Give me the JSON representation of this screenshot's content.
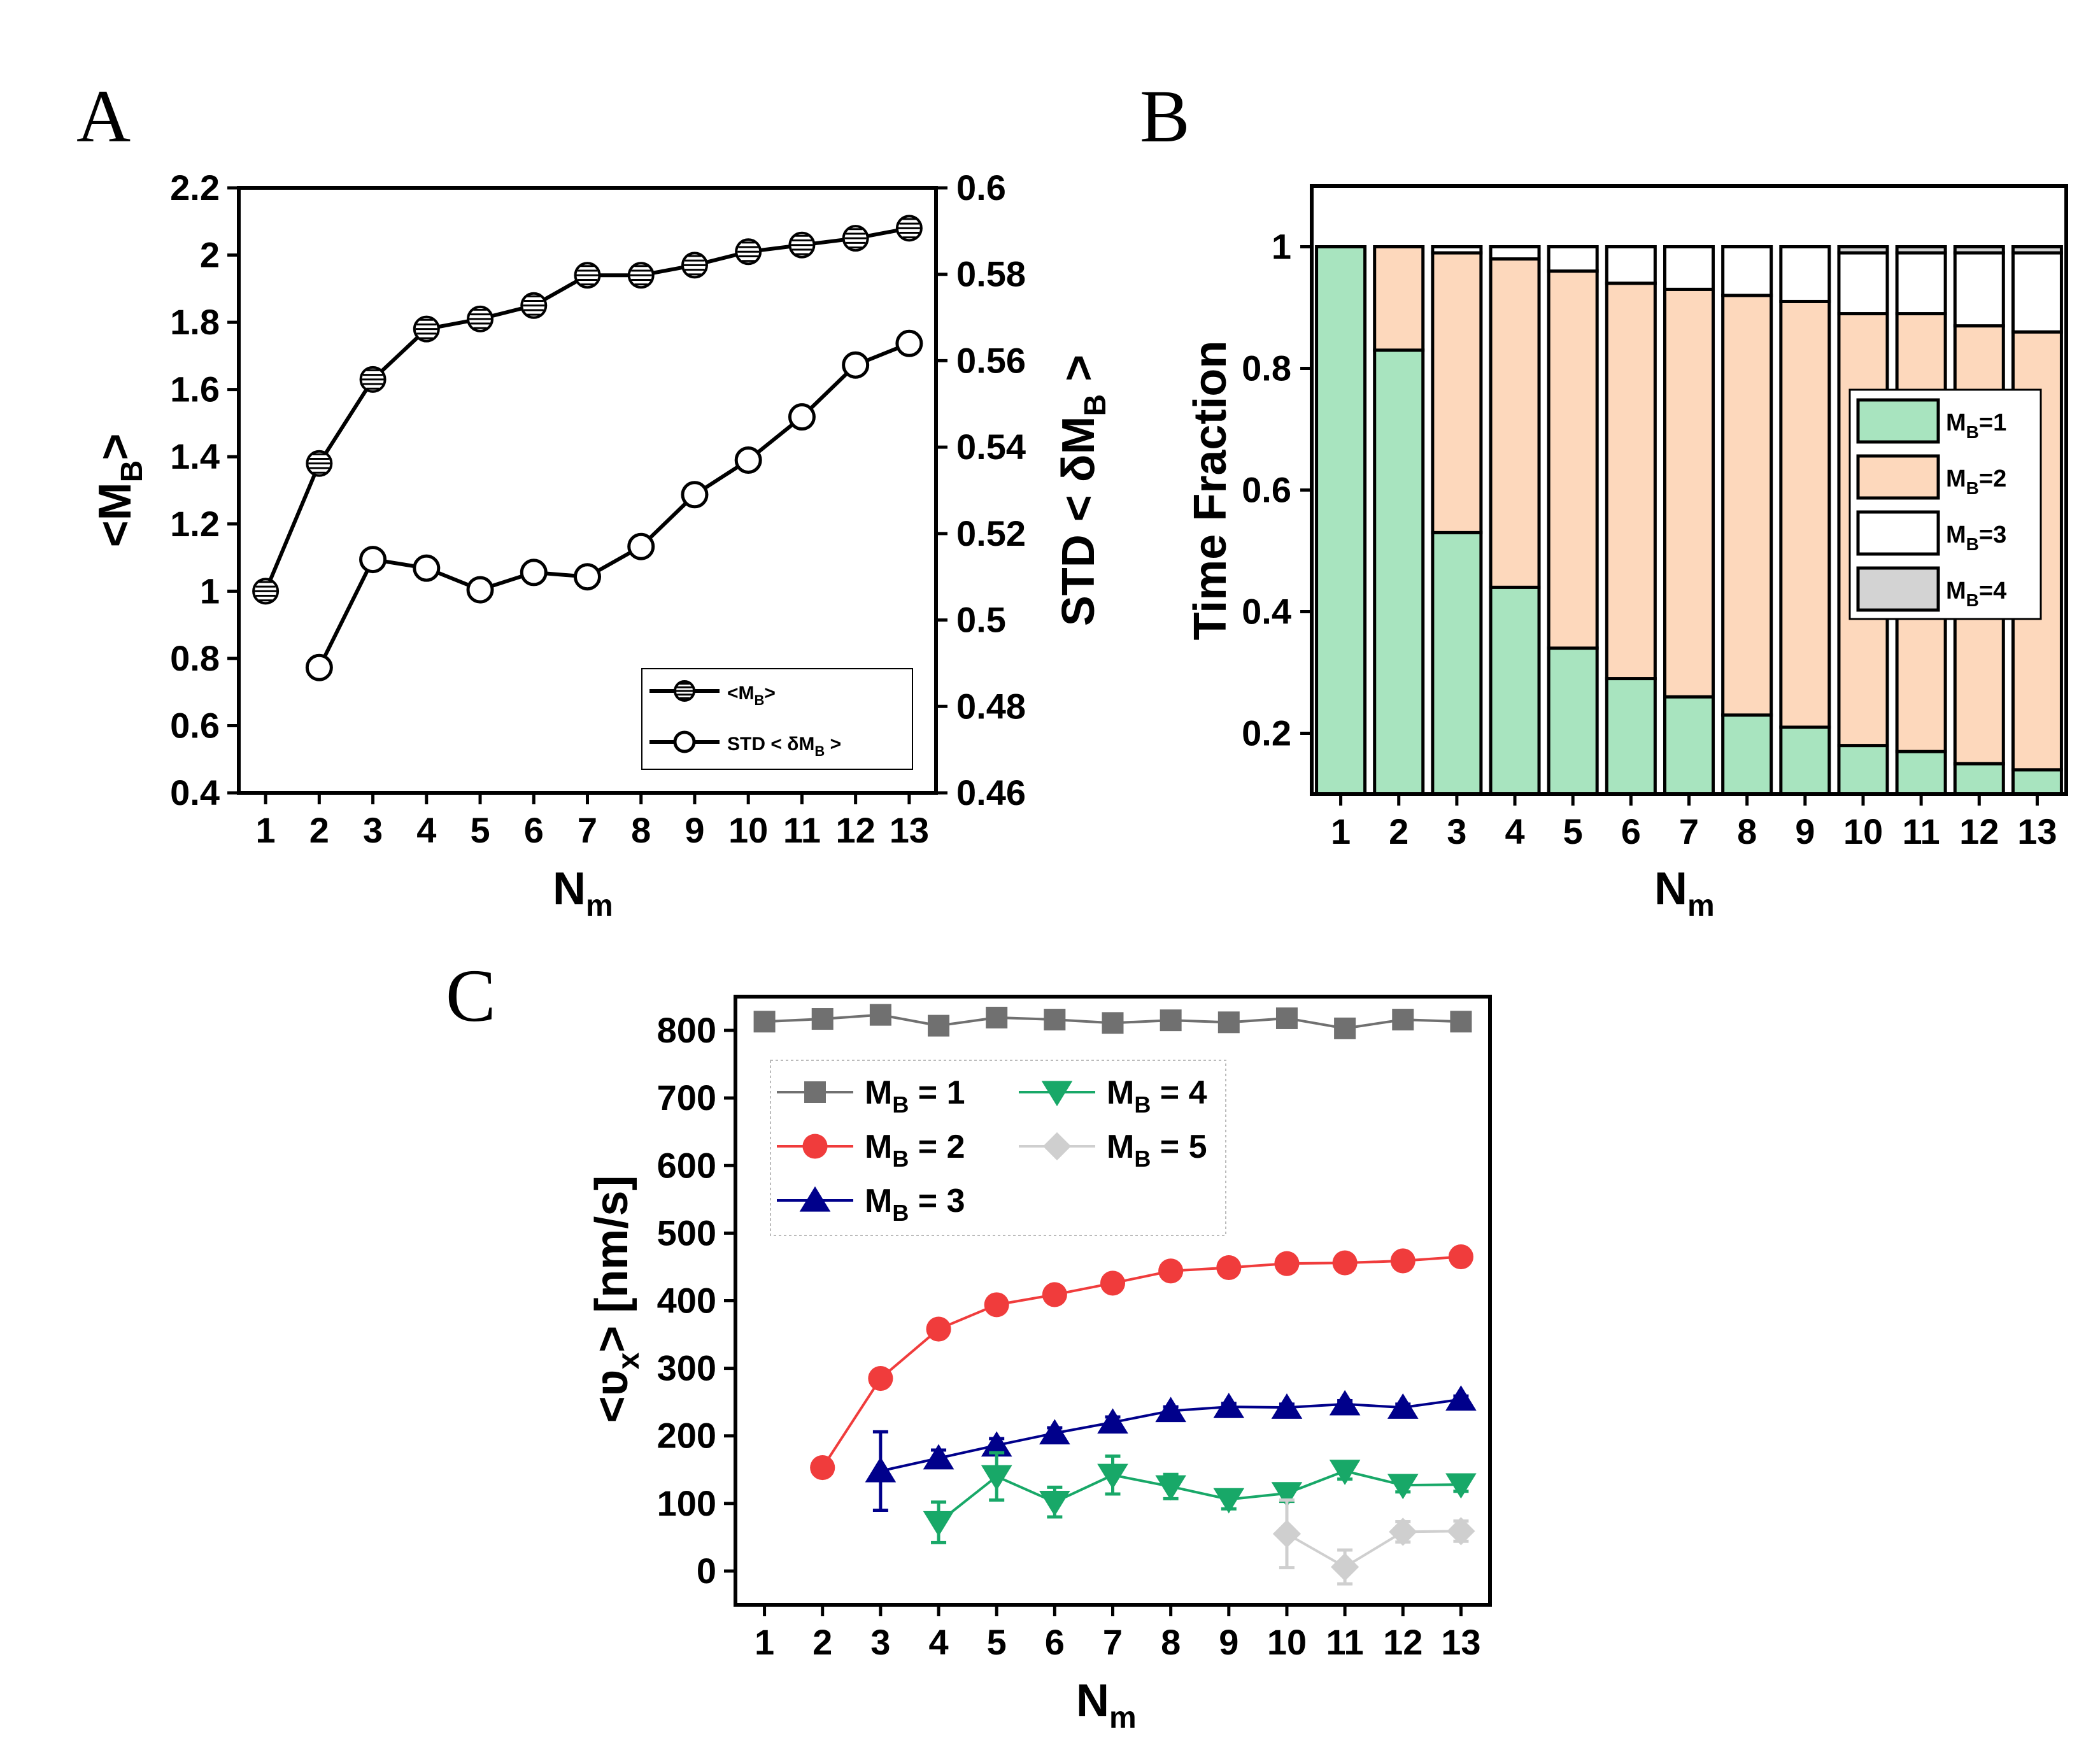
{
  "panels": {
    "a": {
      "letter": "A"
    },
    "b": {
      "letter": "B"
    },
    "c": {
      "letter": "C"
    }
  },
  "chart_data": [
    {
      "id": "A",
      "type": "line",
      "title": "",
      "xlabel": "N",
      "xlabel_sub": "m",
      "ylabel": "<M",
      "ylabel_sub": "B",
      "ylabel_tail": ">",
      "y2label": "STD < δM",
      "y2label_sub": "B",
      "y2label_tail": " >",
      "xlim": [
        0.5,
        13.5
      ],
      "ylim": [
        0.4,
        2.2
      ],
      "y2lim": [
        0.46,
        0.6
      ],
      "xticks": [
        1,
        2,
        3,
        4,
        5,
        6,
        7,
        8,
        9,
        10,
        11,
        12,
        13
      ],
      "yticks": [
        "0.4",
        "0.6",
        "0.8",
        "1",
        "1.2",
        "1.4",
        "1.6",
        "1.8",
        "2",
        "2.2"
      ],
      "y2ticks": [
        "0.46",
        "0.48",
        "0.5",
        "0.52",
        "0.54",
        "0.56",
        "0.58",
        "0.6"
      ],
      "series": [
        {
          "name": "<M",
          "name_sub": "B",
          "name_tail": ">",
          "axis": "left",
          "marker": "hatched-circle",
          "x": [
            1,
            2,
            3,
            4,
            5,
            6,
            7,
            8,
            9,
            10,
            11,
            12,
            13
          ],
          "values": [
            1.0,
            1.38,
            1.63,
            1.78,
            1.81,
            1.85,
            1.94,
            1.94,
            1.97,
            2.01,
            2.03,
            2.05,
            2.08
          ]
        },
        {
          "name": "STD < δM",
          "name_sub": "B",
          "name_tail": " >",
          "axis": "right",
          "marker": "open-circle",
          "x": [
            2,
            3,
            4,
            5,
            6,
            7,
            8,
            9,
            10,
            11,
            12,
            13
          ],
          "values": [
            0.489,
            0.514,
            0.512,
            0.507,
            0.511,
            0.51,
            0.517,
            0.529,
            0.537,
            0.547,
            0.559,
            0.564
          ]
        }
      ],
      "legend": "bottom-right"
    },
    {
      "id": "B",
      "type": "bar",
      "stacked": true,
      "title": "",
      "xlabel": "N",
      "xlabel_sub": "m",
      "ylabel": "Time Fraction",
      "ylim": [
        0.1,
        1.1
      ],
      "yticks": [
        "0.2",
        "0.4",
        "0.6",
        "0.8",
        "1"
      ],
      "categories": [
        "1",
        "2",
        "3",
        "4",
        "5",
        "6",
        "7",
        "8",
        "9",
        "10",
        "11",
        "12",
        "13"
      ],
      "series": [
        {
          "name": "M",
          "name_sub": "B",
          "name_tail": "=1",
          "color": "#a8e4bf",
          "values": [
            1.0,
            0.83,
            0.53,
            0.44,
            0.34,
            0.29,
            0.26,
            0.23,
            0.21,
            0.18,
            0.17,
            0.15,
            0.14
          ]
        },
        {
          "name": "M",
          "name_sub": "B",
          "name_tail": "=2",
          "color": "#fdd8bc",
          "values": [
            0.0,
            0.17,
            0.46,
            0.54,
            0.62,
            0.65,
            0.67,
            0.69,
            0.7,
            0.71,
            0.72,
            0.72,
            0.72
          ]
        },
        {
          "name": "M",
          "name_sub": "B",
          "name_tail": "=3",
          "color": "#ffffff",
          "values": [
            0.0,
            0.0,
            0.01,
            0.02,
            0.04,
            0.06,
            0.07,
            0.08,
            0.09,
            0.1,
            0.1,
            0.12,
            0.13
          ]
        },
        {
          "name": "M",
          "name_sub": "B",
          "name_tail": "=4",
          "color": "#d3d3d3",
          "values": [
            0.0,
            0.0,
            0.0,
            0.0,
            0.0,
            0.0,
            0.0,
            0.0,
            0.0,
            0.01,
            0.01,
            0.01,
            0.01
          ]
        }
      ],
      "legend": "right"
    },
    {
      "id": "C",
      "type": "line",
      "title": "",
      "xlabel": "N",
      "xlabel_sub": "m",
      "ylabel": "<ʋ",
      "ylabel_sub": "x",
      "ylabel_tail": "> [nm/s]",
      "xlim": [
        0.5,
        13.5
      ],
      "ylim": [
        -50,
        850
      ],
      "xticks": [
        1,
        2,
        3,
        4,
        5,
        6,
        7,
        8,
        9,
        10,
        11,
        12,
        13
      ],
      "yticks": [
        "0",
        "100",
        "200",
        "300",
        "400",
        "500",
        "600",
        "700",
        "800"
      ],
      "series": [
        {
          "name": "M",
          "name_sub": "B",
          "name_tail": " = 1",
          "color": "#707070",
          "marker": "square",
          "x": [
            1,
            2,
            3,
            4,
            5,
            6,
            7,
            8,
            9,
            10,
            11,
            12,
            13
          ],
          "values": [
            813,
            817,
            823,
            807,
            819,
            816,
            811,
            815,
            812,
            818,
            803,
            816,
            813
          ],
          "err": [
            0,
            0,
            0,
            0,
            0,
            0,
            0,
            0,
            0,
            0,
            0,
            0,
            0
          ]
        },
        {
          "name": "M",
          "name_sub": "B",
          "name_tail": " = 2",
          "color": "#f03c3c",
          "marker": "circle",
          "x": [
            2,
            3,
            4,
            5,
            6,
            7,
            8,
            9,
            10,
            11,
            12,
            13
          ],
          "values": [
            153,
            285,
            358,
            394,
            409,
            426,
            444,
            449,
            455,
            456,
            459,
            465
          ],
          "err": [
            0,
            0,
            0,
            0,
            0,
            0,
            0,
            0,
            0,
            0,
            0,
            0
          ]
        },
        {
          "name": "M",
          "name_sub": "B",
          "name_tail": " = 3",
          "color": "#00008b",
          "marker": "triangle-up",
          "x": [
            3,
            4,
            5,
            6,
            7,
            8,
            9,
            10,
            11,
            12,
            13
          ],
          "values": [
            148,
            167,
            186,
            204,
            220,
            237,
            243,
            242,
            247,
            242,
            254
          ],
          "err": [
            58,
            12,
            10,
            8,
            8,
            6,
            5,
            5,
            5,
            5,
            5
          ]
        },
        {
          "name": "M",
          "name_sub": "B",
          "name_tail": " = 4",
          "color": "#18a868",
          "marker": "triangle-down",
          "x": [
            4,
            5,
            6,
            7,
            8,
            9,
            10,
            11,
            12,
            13
          ],
          "values": [
            72,
            140,
            102,
            142,
            125,
            106,
            115,
            148,
            127,
            128
          ],
          "err": [
            30,
            35,
            22,
            28,
            18,
            14,
            12,
            12,
            10,
            10
          ]
        },
        {
          "name": "M",
          "name_sub": "B",
          "name_tail": " = 5",
          "color": "#cfcfcf",
          "marker": "diamond",
          "x": [
            10,
            11,
            12,
            13
          ],
          "values": [
            55,
            6,
            58,
            59
          ],
          "err": [
            50,
            25,
            15,
            15
          ]
        }
      ],
      "legend": "top-left"
    }
  ]
}
